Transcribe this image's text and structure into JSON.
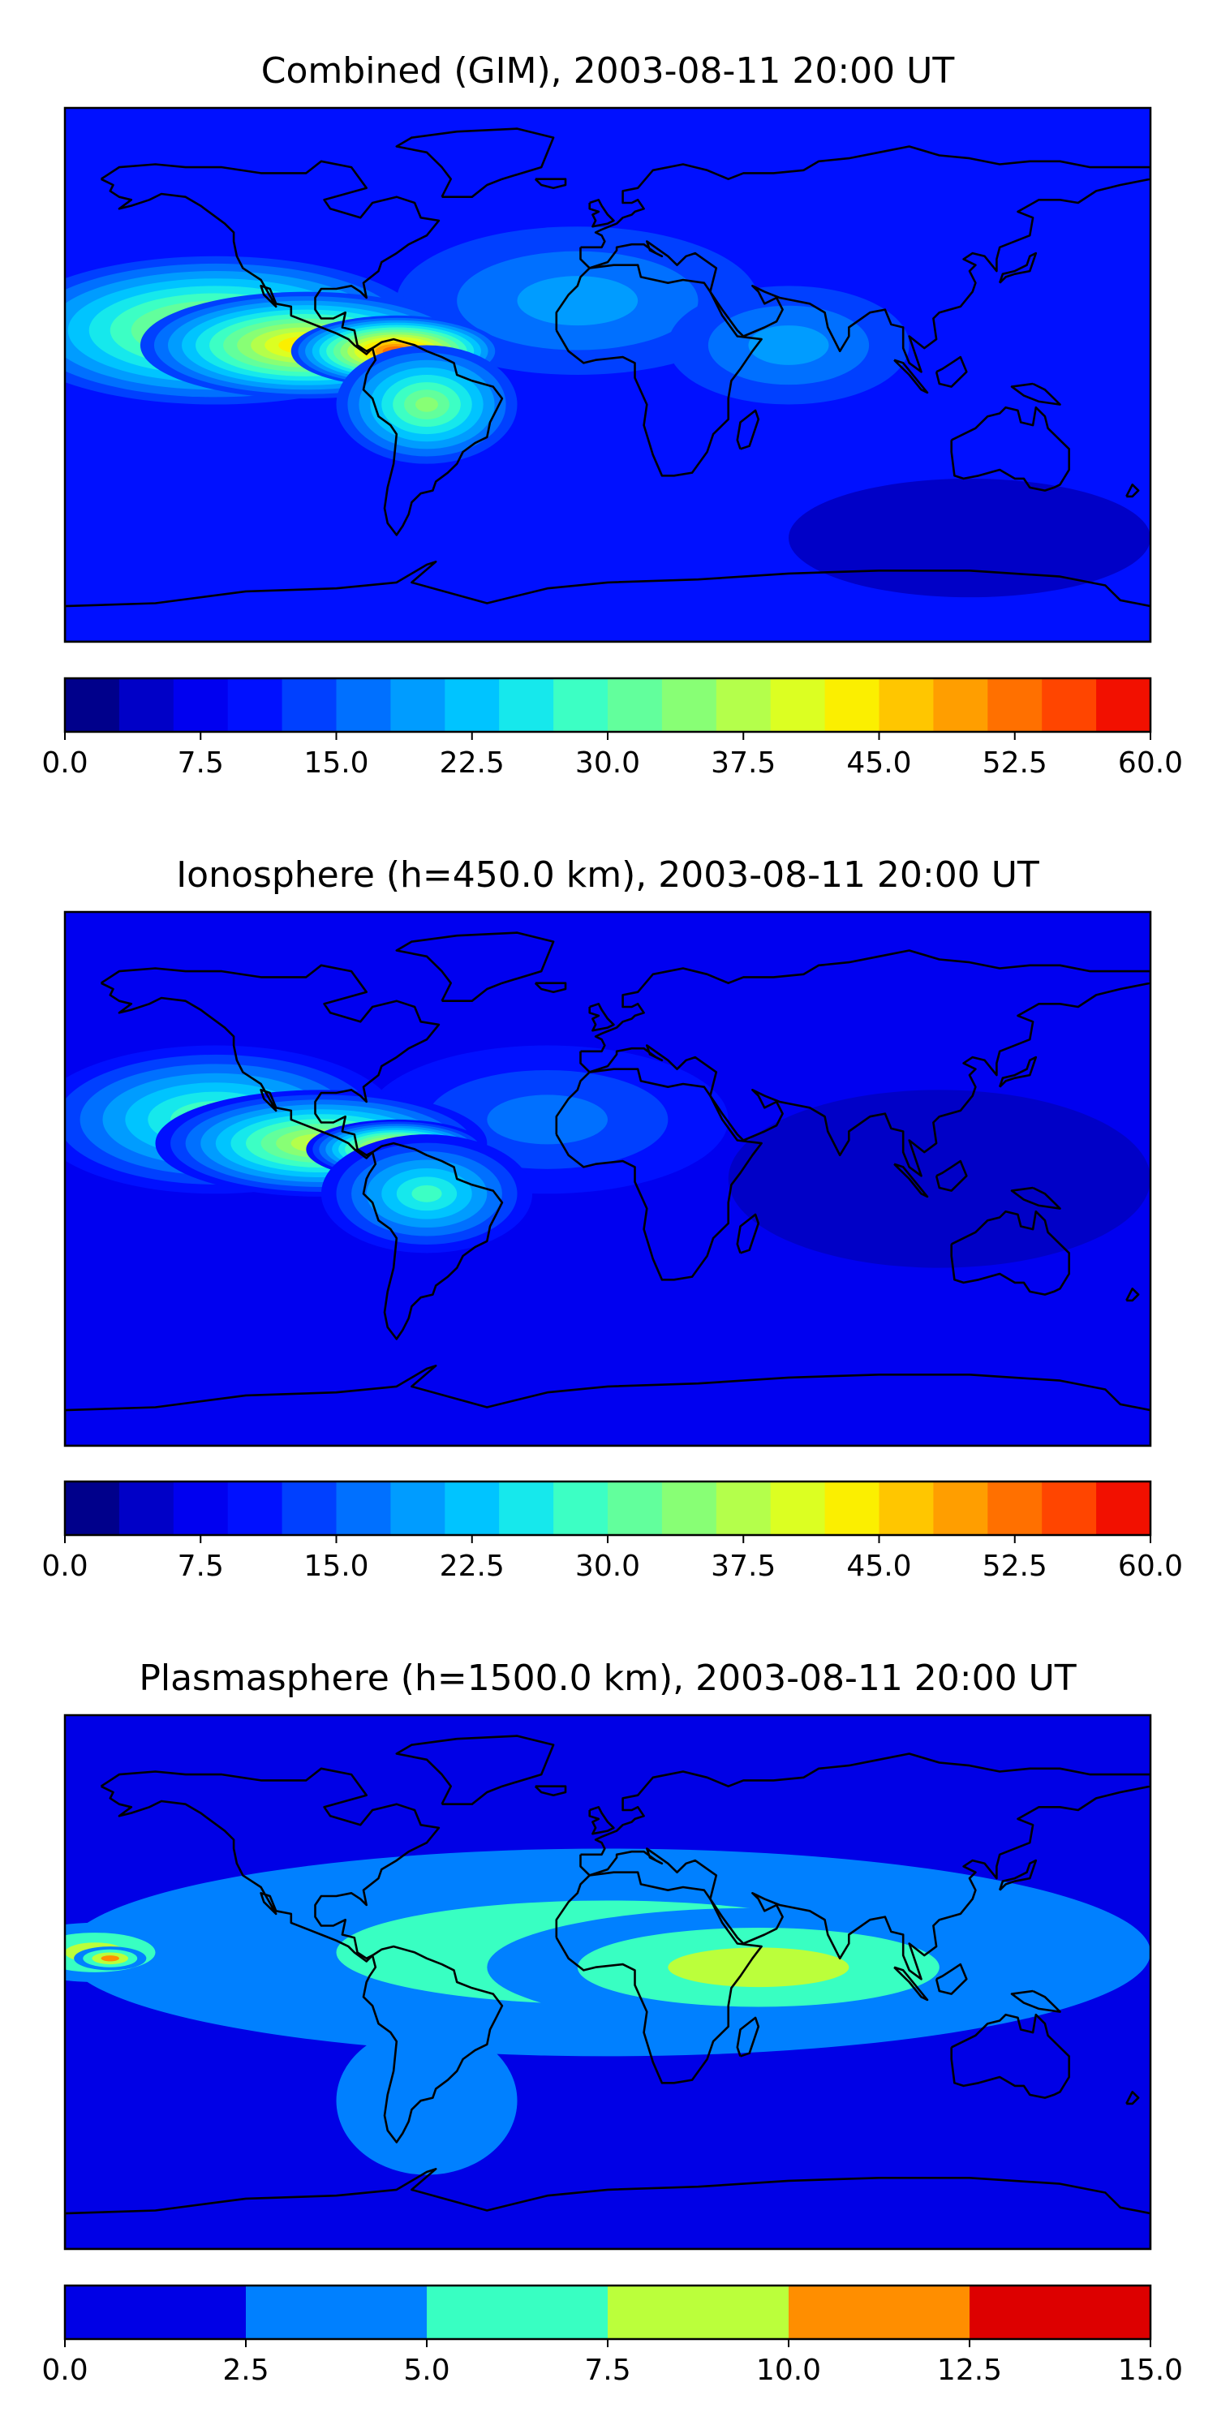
{
  "colormaps": {
    "jet20": [
      "#00008b",
      "#0000c7",
      "#0000f0",
      "#0010ff",
      "#0040ff",
      "#0070ff",
      "#009cff",
      "#00c4ff",
      "#16e8ec",
      "#3cffc4",
      "#62ff9c",
      "#88ff75",
      "#b4ff4b",
      "#dcff22",
      "#fbef00",
      "#ffc600",
      "#ff9e00",
      "#ff7000",
      "#ff4500",
      "#f21000",
      "#c80000",
      "#8b0000"
    ],
    "jet6": [
      "#0000e6",
      "#0080ff",
      "#38ffc2",
      "#bbff3b",
      "#ff8e00",
      "#dd0000"
    ]
  },
  "chart_data": [
    {
      "type": "heatmap",
      "title": "Combined (GIM), 2003-08-11 20:00 UT",
      "colorbar": {
        "ticks": [
          "0.0",
          "7.5",
          "15.0",
          "22.5",
          "30.0",
          "37.5",
          "45.0",
          "52.5",
          "60.0"
        ],
        "range": [
          0,
          60
        ],
        "levels": 20
      },
      "colormap": "jet20",
      "background_value": 10,
      "blobs": [
        {
          "lon": -10,
          "lat": 25,
          "value": 20,
          "rx": 60,
          "ry": 25
        },
        {
          "lon": 60,
          "lat": 10,
          "value": 20,
          "rx": 40,
          "ry": 20
        },
        {
          "lon": -130,
          "lat": 15,
          "value": 40,
          "rx": 70,
          "ry": 25
        },
        {
          "lon": -100,
          "lat": 10,
          "value": 47,
          "rx": 55,
          "ry": 18
        },
        {
          "lon": -70,
          "lat": 8,
          "value": 55,
          "rx": 35,
          "ry": 12
        },
        {
          "lon": -60,
          "lat": -10,
          "value": 35,
          "rx": 30,
          "ry": 20
        },
        {
          "lon": 120,
          "lat": -55,
          "value": 5,
          "rx": 60,
          "ry": 20
        }
      ]
    },
    {
      "type": "heatmap",
      "title": "Ionosphere  (h=450.0 km), 2003-08-11 20:00 UT",
      "colorbar": {
        "ticks": [
          "0.0",
          "7.5",
          "15.0",
          "22.5",
          "30.0",
          "37.5",
          "45.0",
          "52.5",
          "60.0"
        ],
        "range": [
          0,
          60
        ],
        "levels": 20
      },
      "colormap": "jet20",
      "background_value": 8,
      "blobs": [
        {
          "lon": -20,
          "lat": 20,
          "value": 18,
          "rx": 60,
          "ry": 25
        },
        {
          "lon": -130,
          "lat": 20,
          "value": 33,
          "rx": 60,
          "ry": 25
        },
        {
          "lon": -95,
          "lat": 12,
          "value": 40,
          "rx": 55,
          "ry": 18
        },
        {
          "lon": -70,
          "lat": 10,
          "value": 50,
          "rx": 30,
          "ry": 10
        },
        {
          "lon": -60,
          "lat": -5,
          "value": 30,
          "rx": 35,
          "ry": 20
        },
        {
          "lon": 110,
          "lat": 0,
          "value": 3,
          "rx": 70,
          "ry": 30
        }
      ]
    },
    {
      "type": "heatmap",
      "title": "Plasmasphere (h=1500.0 km), 2003-08-11 20:00 UT",
      "colorbar": {
        "ticks": [
          "0.0",
          "2.5",
          "5.0",
          "7.5",
          "10.0",
          "12.5",
          "15.0"
        ],
        "range": [
          0,
          15
        ],
        "levels": 6
      },
      "colormap": "jet6",
      "background_value": 1.5,
      "blobs": [
        {
          "lon": 0,
          "lat": 10,
          "value": 6,
          "rx": 180,
          "ry": 35
        },
        {
          "lon": 50,
          "lat": 5,
          "value": 8.5,
          "rx": 90,
          "ry": 20
        },
        {
          "lon": -170,
          "lat": 10,
          "value": 9,
          "rx": 30,
          "ry": 10
        },
        {
          "lon": -165,
          "lat": 8,
          "value": 11,
          "rx": 12,
          "ry": 4
        },
        {
          "lon": -60,
          "lat": -40,
          "value": 4,
          "rx": 30,
          "ry": 25
        }
      ]
    }
  ]
}
